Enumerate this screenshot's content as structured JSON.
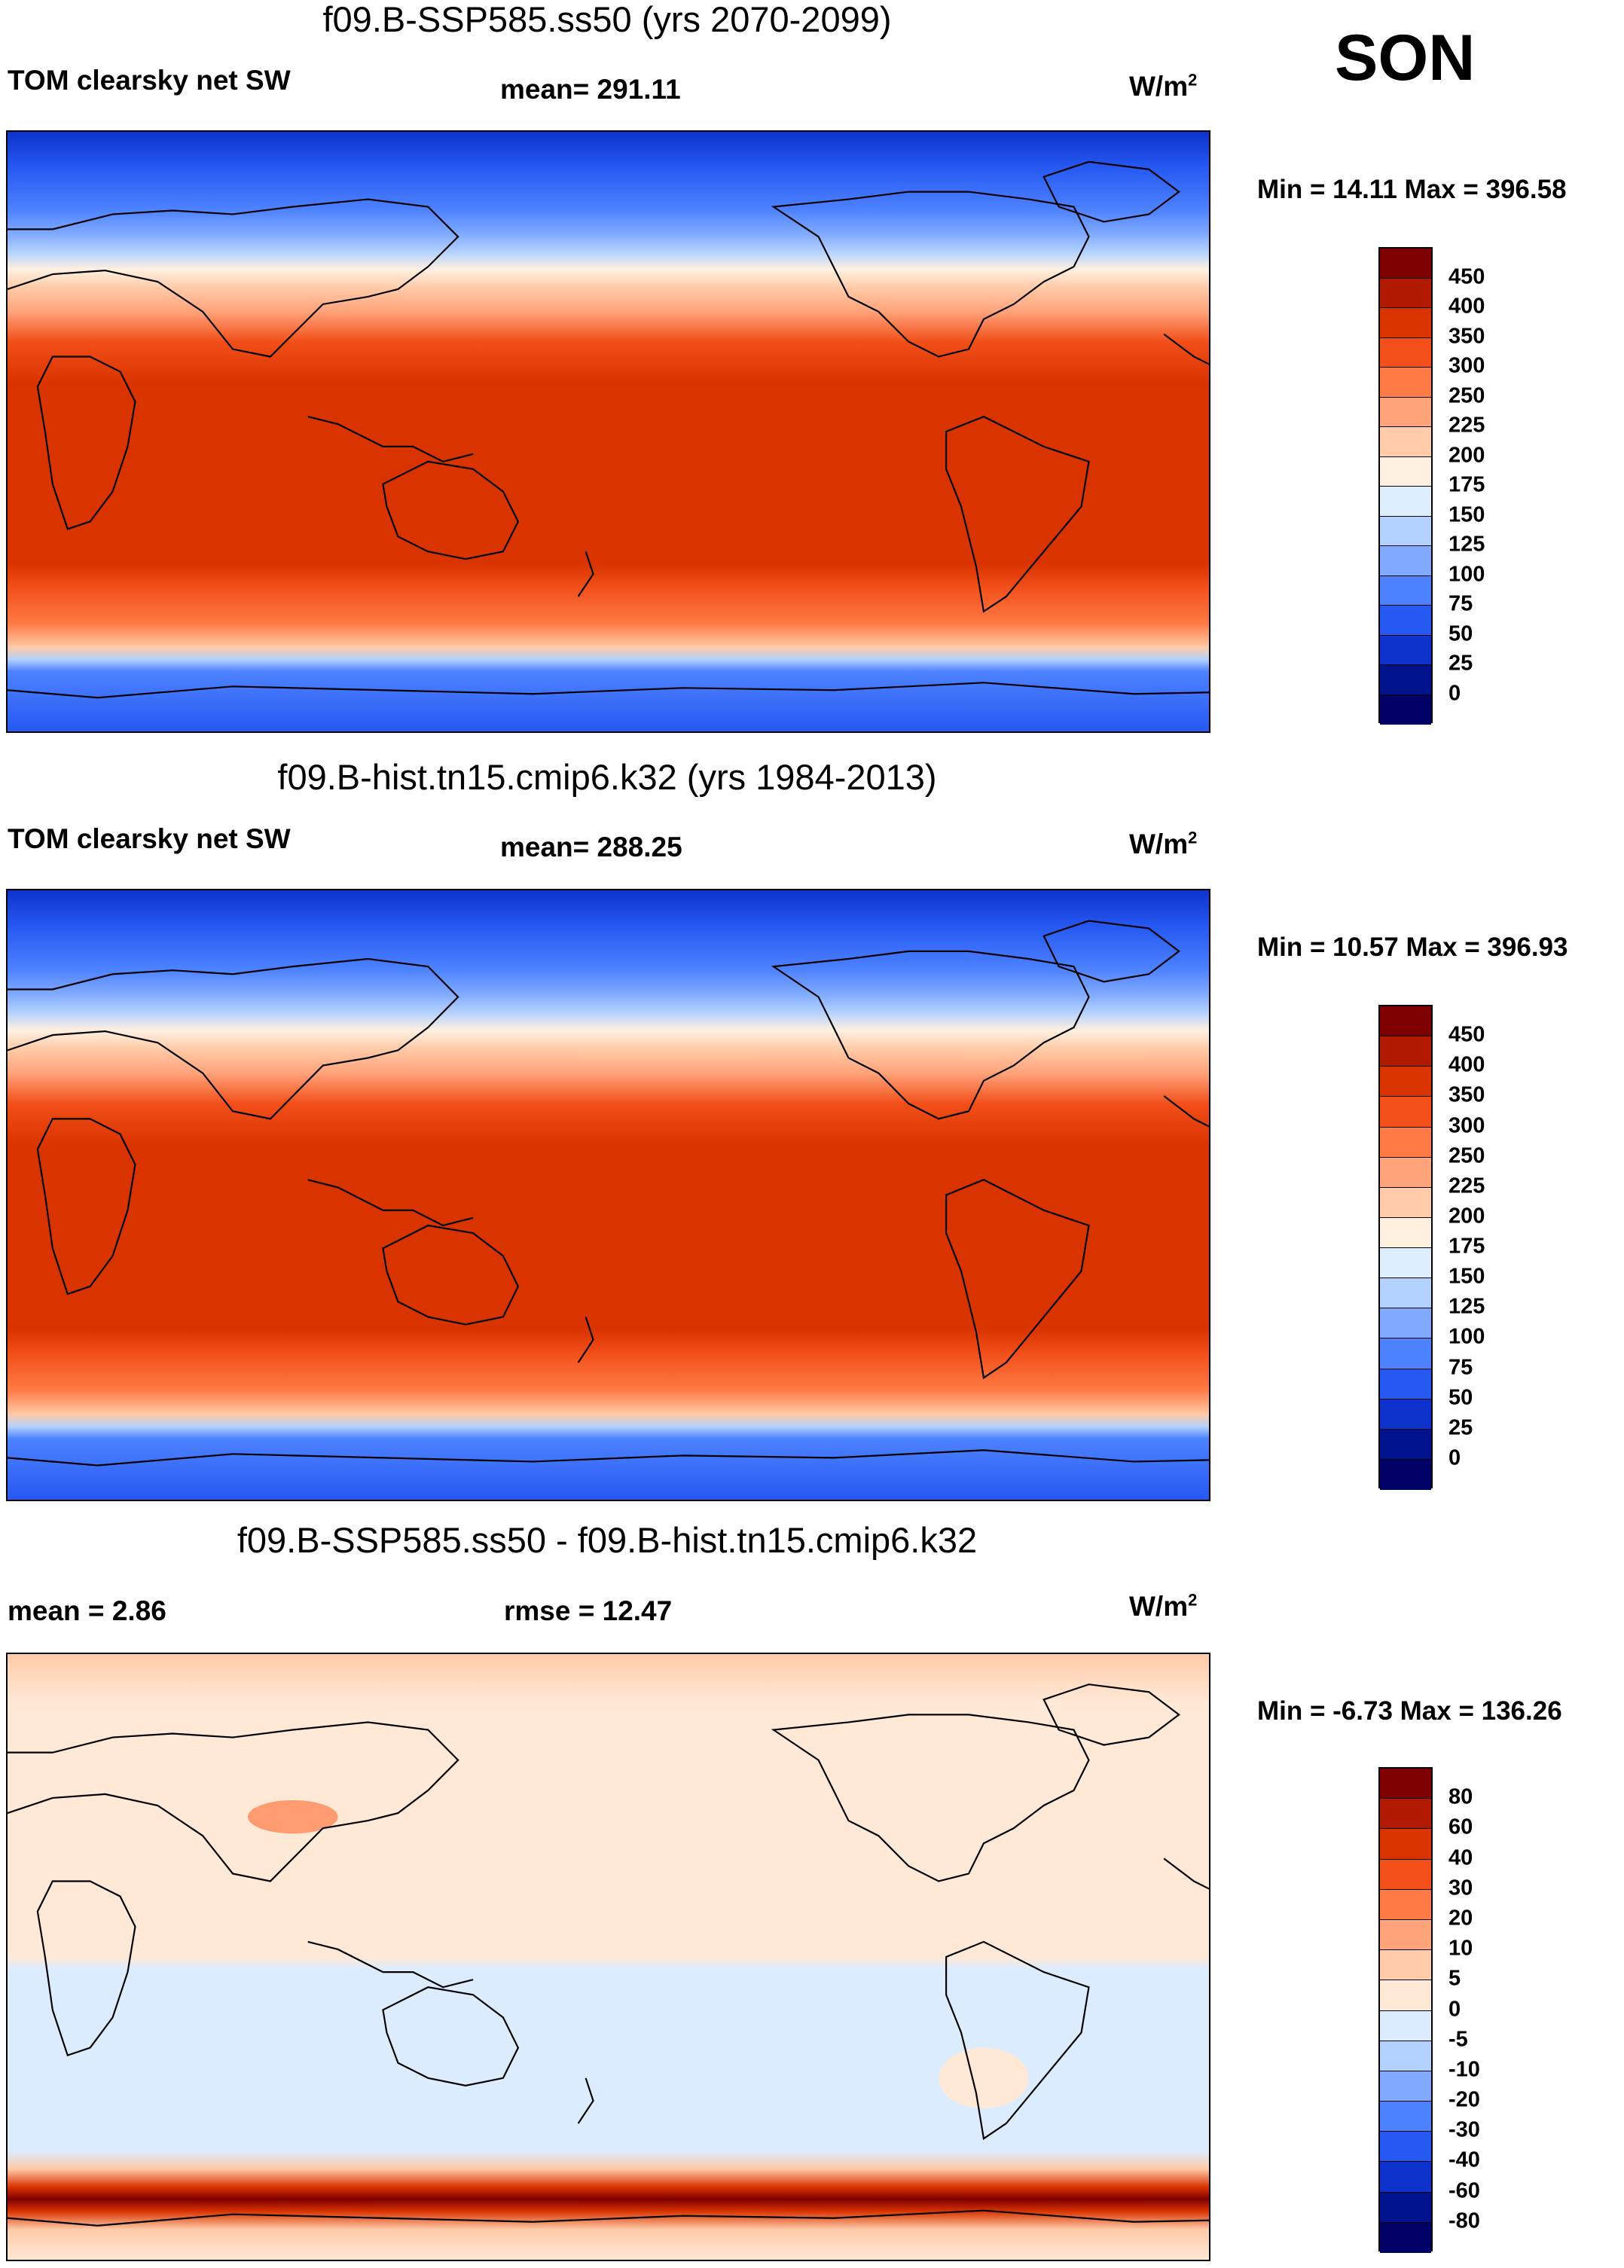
{
  "season": "SON",
  "units_label": "W/m",
  "units_exp": "2",
  "panels": [
    {
      "title": "f09.B-SSP585.ss50 (yrs 2070-2099)",
      "left_label": "TOM clearsky net SW",
      "center_label": "mean= 291.11",
      "minmax": "Min =  14.11 Max = 396.58",
      "colorbar": {
        "levels": [
          "450",
          "400",
          "350",
          "300",
          "250",
          "225",
          "200",
          "175",
          "150",
          "125",
          "100",
          "75",
          "50",
          "25",
          "0"
        ],
        "colors": [
          "#7f0000",
          "#b21a00",
          "#d93300",
          "#f24f1a",
          "#ff7a45",
          "#ffa37a",
          "#ffcba8",
          "#fff0e0",
          "#ddeeff",
          "#b3d1ff",
          "#80aaff",
          "#4d82ff",
          "#2659f2",
          "#0d33cc",
          "#00138c",
          "#000066"
        ]
      }
    },
    {
      "title": "f09.B-hist.tn15.cmip6.k32 (yrs 1984-2013)",
      "left_label": "TOM clearsky net SW",
      "center_label": "mean= 288.25",
      "minmax": "Min =  10.57 Max = 396.93",
      "colorbar": {
        "levels": [
          "450",
          "400",
          "350",
          "300",
          "250",
          "225",
          "200",
          "175",
          "150",
          "125",
          "100",
          "75",
          "50",
          "25",
          "0"
        ],
        "colors": [
          "#7f0000",
          "#b21a00",
          "#d93300",
          "#f24f1a",
          "#ff7a45",
          "#ffa37a",
          "#ffcba8",
          "#fff0e0",
          "#ddeeff",
          "#b3d1ff",
          "#80aaff",
          "#4d82ff",
          "#2659f2",
          "#0d33cc",
          "#00138c",
          "#000066"
        ]
      }
    },
    {
      "title": "f09.B-SSP585.ss50 - f09.B-hist.tn15.cmip6.k32",
      "left_label": "mean =   2.86",
      "center_label": "rmse =  12.47",
      "minmax": "Min =  -6.73 Max = 136.26",
      "colorbar": {
        "levels": [
          "80",
          "60",
          "40",
          "30",
          "20",
          "10",
          "5",
          "0",
          "-5",
          "-10",
          "-20",
          "-30",
          "-40",
          "-60",
          "-80"
        ],
        "colors": [
          "#7f0000",
          "#b21a00",
          "#d93300",
          "#f24f1a",
          "#ff7a45",
          "#ffa37a",
          "#ffcba8",
          "#ffe8d6",
          "#dcecff",
          "#b3d1ff",
          "#80aaff",
          "#4d82ff",
          "#2659f2",
          "#0d33cc",
          "#00138c",
          "#000066"
        ]
      }
    }
  ]
}
